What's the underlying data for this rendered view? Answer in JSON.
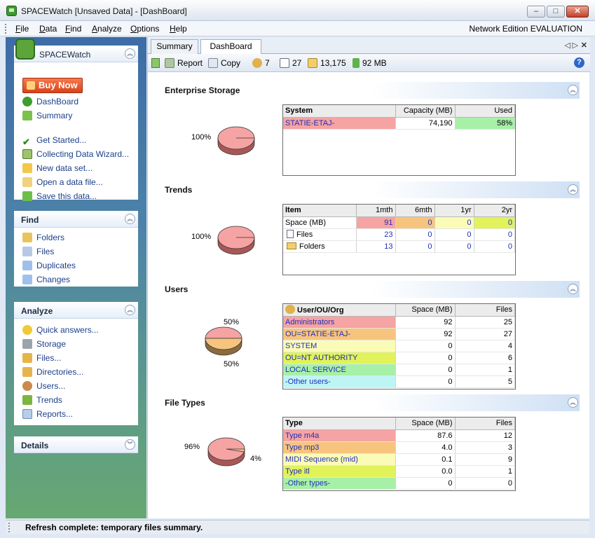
{
  "window": {
    "title": "SPACEWatch [Unsaved Data] - [DashBoard]",
    "min": "–",
    "max": "□",
    "close": "✕"
  },
  "menu": {
    "items": [
      "File",
      "Data",
      "Find",
      "Analyze",
      "Options",
      "Help"
    ],
    "edition": "Network Edition EVALUATION"
  },
  "sidebar": {
    "app": {
      "title": "SPACEWatch",
      "buy_now": "Buy Now",
      "links": [
        "DashBoard",
        "Summary",
        "Get Started...",
        "Collecting Data Wizard...",
        "New data set...",
        "Open a data file...",
        "Save this data..."
      ]
    },
    "find": {
      "title": "Find",
      "links": [
        "Folders",
        "Files",
        "Duplicates",
        "Changes"
      ]
    },
    "analyze": {
      "title": "Analyze",
      "links": [
        "Quick answers...",
        "Storage",
        "Files...",
        "Directories...",
        "Users...",
        "Trends",
        "Reports..."
      ]
    },
    "details": {
      "title": "Details"
    }
  },
  "tabs": {
    "summary": "Summary",
    "dashboard": "DashBoard"
  },
  "toolbar": {
    "report": "Report",
    "copy": "Copy",
    "users": "7",
    "files": "27",
    "folders": "13,175",
    "size": "92 MB"
  },
  "sections": {
    "storage": {
      "title": "Enterprise Storage",
      "pie_label": "100%",
      "headers": [
        "System",
        "Capacity (MB)",
        "Used"
      ],
      "rows": [
        {
          "name": "STATIE-ETAJ-",
          "capacity": "74,190",
          "used": "58%"
        }
      ]
    },
    "trends": {
      "title": "Trends",
      "pie_label": "100%",
      "headers": [
        "Item",
        "1mth",
        "6mth",
        "1yr",
        "2yr"
      ],
      "rows": [
        {
          "name": "Space (MB)",
          "v": [
            "91",
            "0",
            "0",
            "0"
          ]
        },
        {
          "name": "Files",
          "v": [
            "23",
            "0",
            "0",
            "0"
          ]
        },
        {
          "name": "Folders",
          "v": [
            "13",
            "0",
            "0",
            "0"
          ]
        }
      ]
    },
    "users": {
      "title": "Users",
      "pie_labels": [
        "50%",
        "50%"
      ],
      "headers": [
        "User/OU/Org",
        "Space (MB)",
        "Files"
      ],
      "rows": [
        {
          "name": "Administrators",
          "space": "92",
          "files": "25"
        },
        {
          "name": "OU=STATIE-ETAJ-",
          "space": "92",
          "files": "27"
        },
        {
          "name": "SYSTEM",
          "space": "0",
          "files": "4"
        },
        {
          "name": "OU=NT AUTHORITY",
          "space": "0",
          "files": "6"
        },
        {
          "name": "LOCAL SERVICE",
          "space": "0",
          "files": "1"
        },
        {
          "name": "-Other users-",
          "space": "0",
          "files": "5"
        }
      ]
    },
    "filetypes": {
      "title": "File Types",
      "pie_labels": [
        "96%",
        "4%"
      ],
      "headers": [
        "Type",
        "Space (MB)",
        "Files"
      ],
      "rows": [
        {
          "name": "Type m4a",
          "space": "87.6",
          "files": "12"
        },
        {
          "name": "Type mp3",
          "space": "4.0",
          "files": "3"
        },
        {
          "name": "MIDI Sequence (mid)",
          "space": "0.1",
          "files": "9"
        },
        {
          "name": "Type itl",
          "space": "0.0",
          "files": "1"
        },
        {
          "name": "-Other types-",
          "space": "0",
          "files": "0"
        }
      ]
    }
  },
  "colors": {
    "pink": "#f5a3a3",
    "orange": "#f7c47e",
    "yellow": "#fbfbb8",
    "lime": "#e1f25a",
    "green": "#a7f0a7",
    "cyan": "#bdf5f5"
  },
  "status": {
    "text": "Refresh complete: temporary files summary."
  }
}
